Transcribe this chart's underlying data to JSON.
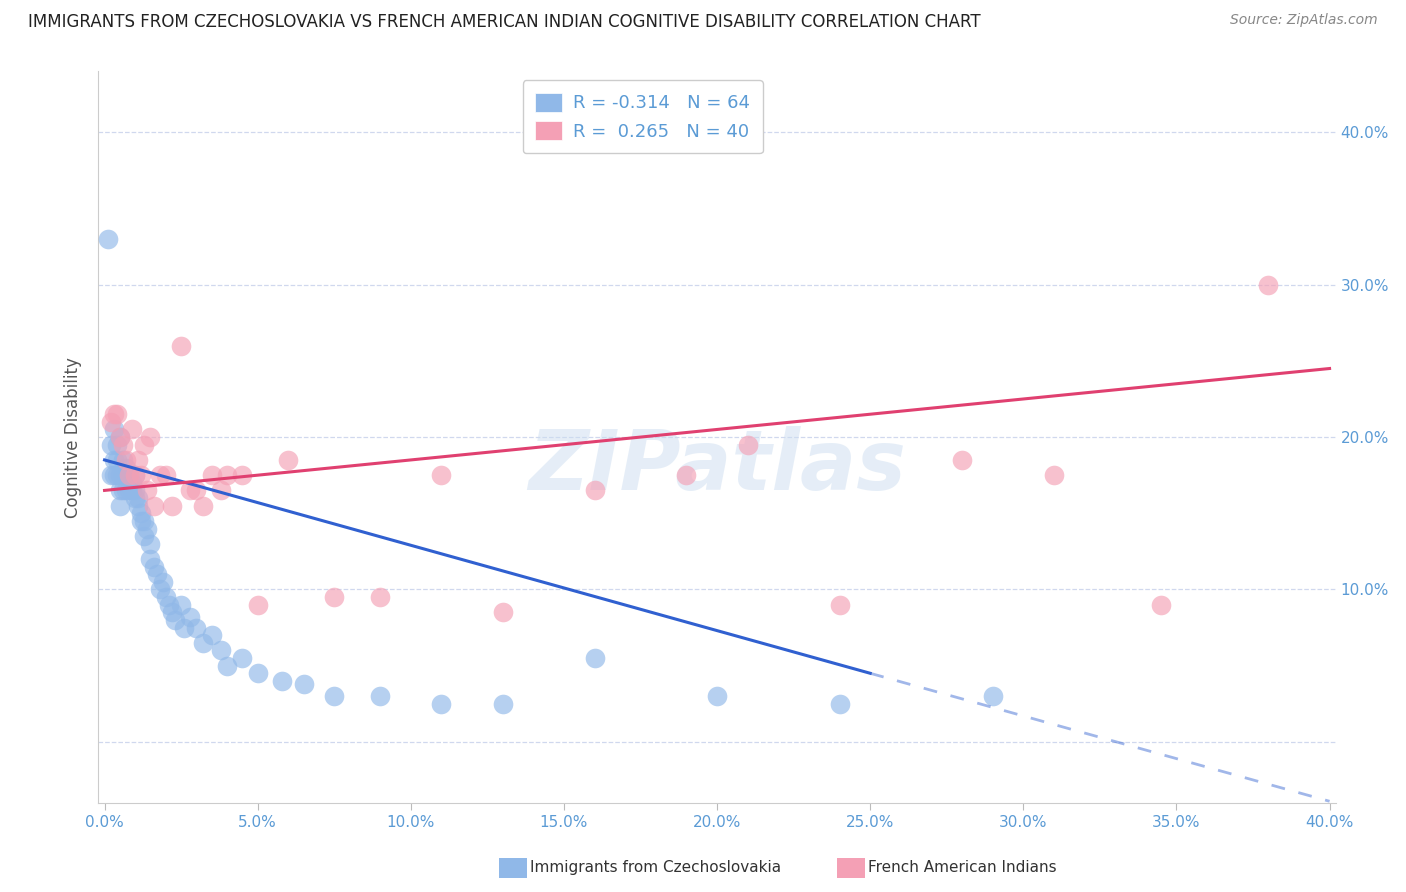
{
  "title": "IMMIGRANTS FROM CZECHOSLOVAKIA VS FRENCH AMERICAN INDIAN COGNITIVE DISABILITY CORRELATION CHART",
  "source": "Source: ZipAtlas.com",
  "ylabel": "Cognitive Disability",
  "xlim": [
    -0.002,
    0.402
  ],
  "ylim": [
    -0.04,
    0.44
  ],
  "xtick_vals": [
    0.0,
    0.05,
    0.1,
    0.15,
    0.2,
    0.25,
    0.3,
    0.35,
    0.4
  ],
  "xtick_labels": [
    "0.0%",
    "5.0%",
    "10.0%",
    "15.0%",
    "20.0%",
    "25.0%",
    "30.0%",
    "35.0%",
    "40.0%"
  ],
  "ytick_vals": [
    0.0,
    0.1,
    0.2,
    0.3,
    0.4
  ],
  "ytick_labels_right": [
    "",
    "10.0%",
    "20.0%",
    "30.0%",
    "40.0%"
  ],
  "blue_color": "#90b8e8",
  "pink_color": "#f4a0b5",
  "trend_blue_color": "#3060d0",
  "trend_pink_color": "#e04070",
  "axis_label_color": "#5b9bd5",
  "grid_color": "#d0d8ee",
  "legend_r_blue": "-0.314",
  "legend_n_blue": "64",
  "legend_r_pink": "0.265",
  "legend_n_pink": "40",
  "legend_label_blue": "Immigrants from Czechoslovakia",
  "legend_label_pink": "French American Indians",
  "watermark": "ZIPatlas",
  "blue_scatter_x": [
    0.001,
    0.002,
    0.002,
    0.003,
    0.003,
    0.003,
    0.004,
    0.004,
    0.004,
    0.005,
    0.005,
    0.005,
    0.005,
    0.006,
    0.006,
    0.006,
    0.007,
    0.007,
    0.007,
    0.008,
    0.008,
    0.008,
    0.009,
    0.009,
    0.01,
    0.01,
    0.01,
    0.011,
    0.011,
    0.012,
    0.012,
    0.013,
    0.013,
    0.014,
    0.015,
    0.015,
    0.016,
    0.017,
    0.018,
    0.019,
    0.02,
    0.021,
    0.022,
    0.023,
    0.025,
    0.026,
    0.028,
    0.03,
    0.032,
    0.035,
    0.038,
    0.04,
    0.045,
    0.05,
    0.058,
    0.065,
    0.075,
    0.09,
    0.11,
    0.13,
    0.16,
    0.2,
    0.24,
    0.29
  ],
  "blue_scatter_y": [
    0.33,
    0.175,
    0.195,
    0.175,
    0.185,
    0.205,
    0.175,
    0.185,
    0.195,
    0.2,
    0.175,
    0.155,
    0.165,
    0.175,
    0.185,
    0.165,
    0.175,
    0.165,
    0.18,
    0.175,
    0.165,
    0.175,
    0.17,
    0.165,
    0.175,
    0.165,
    0.16,
    0.155,
    0.16,
    0.145,
    0.15,
    0.145,
    0.135,
    0.14,
    0.13,
    0.12,
    0.115,
    0.11,
    0.1,
    0.105,
    0.095,
    0.09,
    0.085,
    0.08,
    0.09,
    0.075,
    0.082,
    0.075,
    0.065,
    0.07,
    0.06,
    0.05,
    0.055,
    0.045,
    0.04,
    0.038,
    0.03,
    0.03,
    0.025,
    0.025,
    0.055,
    0.03,
    0.025,
    0.03
  ],
  "pink_scatter_x": [
    0.002,
    0.003,
    0.004,
    0.005,
    0.006,
    0.007,
    0.008,
    0.009,
    0.01,
    0.011,
    0.012,
    0.013,
    0.014,
    0.015,
    0.016,
    0.018,
    0.02,
    0.022,
    0.025,
    0.028,
    0.03,
    0.032,
    0.035,
    0.038,
    0.04,
    0.045,
    0.05,
    0.06,
    0.075,
    0.09,
    0.11,
    0.13,
    0.16,
    0.19,
    0.21,
    0.24,
    0.28,
    0.31,
    0.345,
    0.38
  ],
  "pink_scatter_y": [
    0.21,
    0.215,
    0.215,
    0.2,
    0.195,
    0.185,
    0.175,
    0.205,
    0.175,
    0.185,
    0.175,
    0.195,
    0.165,
    0.2,
    0.155,
    0.175,
    0.175,
    0.155,
    0.26,
    0.165,
    0.165,
    0.155,
    0.175,
    0.165,
    0.175,
    0.175,
    0.09,
    0.185,
    0.095,
    0.095,
    0.175,
    0.085,
    0.165,
    0.175,
    0.195,
    0.09,
    0.185,
    0.175,
    0.09,
    0.3
  ],
  "blue_trend_x0": 0.0,
  "blue_trend_y0": 0.185,
  "blue_trend_x1": 0.25,
  "blue_trend_y1": 0.045,
  "blue_trend_dash_x1": 0.4,
  "pink_trend_x0": 0.0,
  "pink_trend_y0": 0.165,
  "pink_trend_x1": 0.4,
  "pink_trend_y1": 0.245
}
